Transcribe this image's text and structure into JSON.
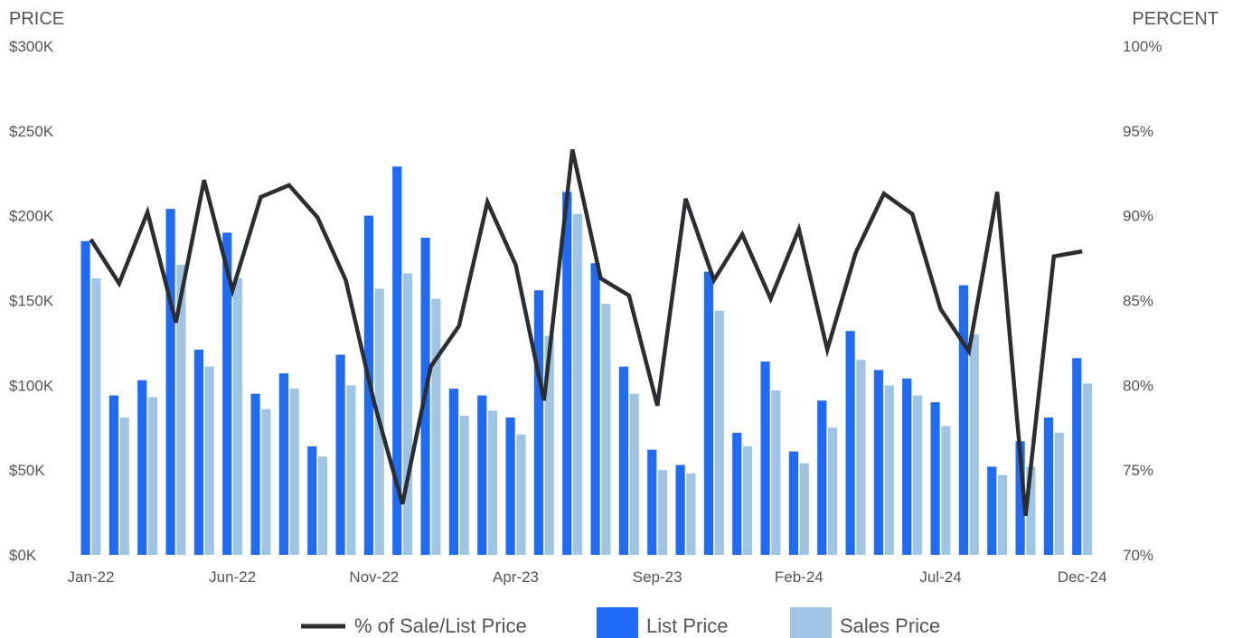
{
  "chart_data": {
    "type": "bar",
    "left_axis_title": "PRICE",
    "right_axis_title": "PERCENT",
    "left_ticks": [
      "$0K",
      "$50K",
      "$100K",
      "$150K",
      "$200K",
      "$250K",
      "$300K"
    ],
    "right_ticks": [
      "70%",
      "75%",
      "80%",
      "85%",
      "90%",
      "95%",
      "100%"
    ],
    "ylim_left": [
      0,
      300000
    ],
    "ylim_right": [
      70,
      100
    ],
    "x_tick_labels": [
      "Jan-22",
      "Jun-22",
      "Nov-22",
      "Apr-23",
      "Sep-23",
      "Feb-24",
      "Jul-24",
      "Dec-24"
    ],
    "x_tick_indices": [
      0,
      5,
      10,
      15,
      20,
      25,
      30,
      35
    ],
    "categories": [
      "Jan-22",
      "Feb-22",
      "Mar-22",
      "Apr-22",
      "May-22",
      "Jun-22",
      "Jul-22",
      "Aug-22",
      "Sep-22",
      "Oct-22",
      "Nov-22",
      "Dec-22",
      "Jan-23",
      "Feb-23",
      "Mar-23",
      "Apr-23",
      "May-23",
      "Jun-23",
      "Jul-23",
      "Aug-23",
      "Sep-23",
      "Oct-23",
      "Nov-23",
      "Dec-23",
      "Jan-24",
      "Feb-24",
      "Mar-24",
      "Apr-24",
      "May-24",
      "Jun-24",
      "Jul-24",
      "Aug-24",
      "Sep-24",
      "Oct-24",
      "Nov-24",
      "Dec-24"
    ],
    "series": [
      {
        "name": "List Price",
        "kind": "bar",
        "color": "#1f6bf5",
        "values": [
          185000,
          94000,
          103000,
          204000,
          121000,
          190000,
          95000,
          107000,
          64000,
          118000,
          200000,
          229000,
          187000,
          98000,
          94000,
          81000,
          156000,
          214000,
          172000,
          111000,
          62000,
          53000,
          167000,
          72000,
          114000,
          61000,
          91000,
          132000,
          109000,
          104000,
          90000,
          159000,
          52000,
          67000,
          81000,
          116000
        ]
      },
      {
        "name": "Sales Price",
        "kind": "bar",
        "color": "#9fc4e4",
        "values": [
          163000,
          81000,
          93000,
          171000,
          111000,
          163000,
          86000,
          98000,
          58000,
          100000,
          157000,
          166000,
          151000,
          82000,
          85000,
          71000,
          129000,
          201000,
          148000,
          95000,
          50000,
          48000,
          144000,
          64000,
          97000,
          54000,
          75000,
          115000,
          100000,
          94000,
          76000,
          130000,
          47000,
          52000,
          72000,
          101000
        ]
      },
      {
        "name": "% of Sale/List Price",
        "kind": "line",
        "axis": "right",
        "color": "#2b2e31",
        "values": [
          88.6,
          86.0,
          90.2,
          83.7,
          92.1,
          85.6,
          91.1,
          91.8,
          89.9,
          86.2,
          79.0,
          73.0,
          81.1,
          83.5,
          90.8,
          87.1,
          79.1,
          93.9,
          86.3,
          85.3,
          78.8,
          91.0,
          86.2,
          88.9,
          85.1,
          89.2,
          82.1,
          87.8,
          91.3,
          90.1,
          84.5,
          82.0,
          91.4,
          72.3,
          87.6,
          87.9
        ]
      }
    ],
    "legend_position": "bottom",
    "grid": false
  }
}
